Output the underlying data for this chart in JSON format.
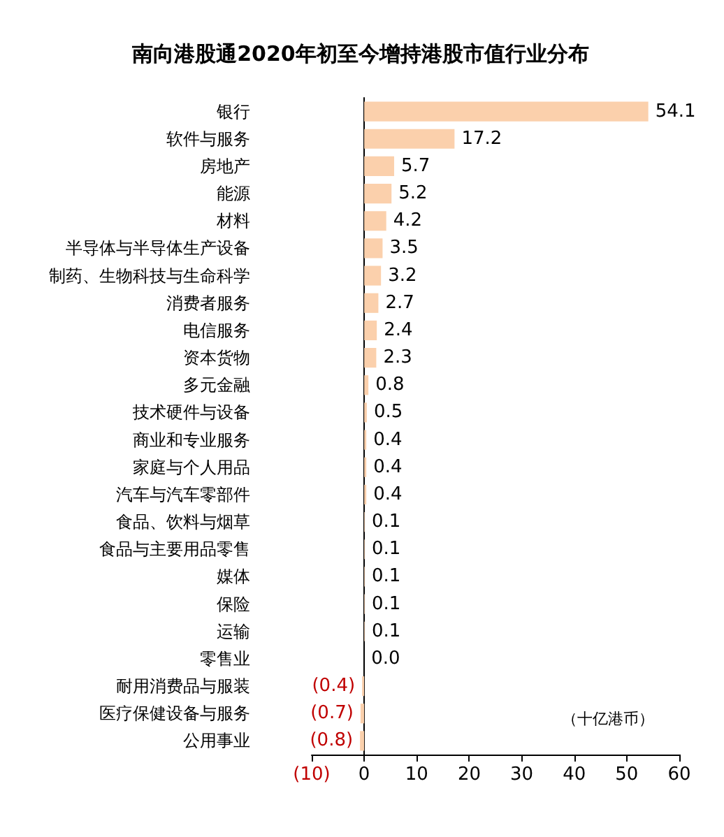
{
  "chart_data": {
    "type": "bar",
    "orientation": "horizontal",
    "title": "南向港股通2020年初至今增持港股市值行业分布",
    "categories": [
      "银行",
      "软件与服务",
      "房地产",
      "能源",
      "材料",
      "半导体与半导体生产设备",
      "制药、生物科技与生命科学",
      "消费者服务",
      "电信服务",
      "资本货物",
      "多元金融",
      "技术硬件与设备",
      "商业和专业服务",
      "家庭与个人用品",
      "汽车与汽车零部件",
      "食品、饮料与烟草",
      "食品与主要用品零售",
      "媒体",
      "保险",
      "运输",
      "零售业",
      "耐用消费品与服装",
      "医疗保健设备与服务",
      "公用事业"
    ],
    "values": [
      54.1,
      17.2,
      5.7,
      5.2,
      4.2,
      3.5,
      3.2,
      2.7,
      2.4,
      2.3,
      0.8,
      0.5,
      0.4,
      0.4,
      0.4,
      0.1,
      0.1,
      0.1,
      0.1,
      0.1,
      0.0,
      -0.4,
      -0.7,
      -0.8
    ],
    "value_labels": [
      "54.1",
      "17.2",
      "5.7",
      "5.2",
      "4.2",
      "3.5",
      "3.2",
      "2.7",
      "2.4",
      "2.3",
      "0.8",
      "0.5",
      "0.4",
      "0.4",
      "0.4",
      "0.1",
      "0.1",
      "0.1",
      "0.1",
      "0.1",
      "0.0",
      "(0.4)",
      "(0.7)",
      "(0.8)"
    ],
    "color": "#fbd0ac",
    "xlim": [
      -10,
      60
    ],
    "xticks": [
      {
        "value": -10,
        "label": "(10)"
      },
      0,
      10,
      20,
      30,
      40,
      50,
      60
    ],
    "annotations": [
      "（十亿港币）"
    ]
  }
}
